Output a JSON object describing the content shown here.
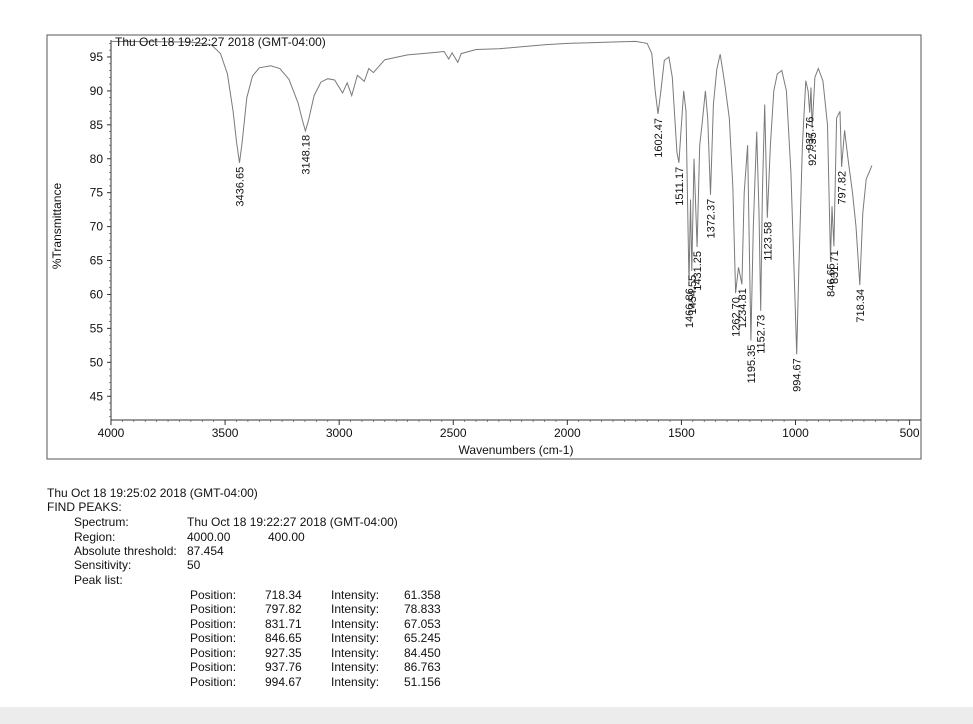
{
  "colors": {
    "spectrum": "#7a7a7a",
    "frame": "#555555",
    "text": "#111111",
    "paper": "#ffffff",
    "margin": "#ececec"
  },
  "chart_data": {
    "type": "line",
    "title": "Thu Oct 18 19:22:27 2018 (GMT-04:00)",
    "xlabel": "Wavenumbers (cm-1)",
    "ylabel": "%Transmittance",
    "xlim": [
      4000,
      450
    ],
    "ylim": [
      41.5,
      97.5
    ],
    "x_reversed": true,
    "grid": false,
    "xticks": [
      4000,
      3500,
      3000,
      2500,
      2000,
      1500,
      1000,
      500
    ],
    "yticks": [
      45,
      50,
      55,
      60,
      65,
      70,
      75,
      80,
      85,
      90,
      95
    ],
    "series": [
      {
        "points": [
          [
            4000,
            97.3
          ],
          [
            3650,
            97.2
          ],
          [
            3560,
            96.8
          ],
          [
            3520,
            95.5
          ],
          [
            3490,
            92.5
          ],
          [
            3465,
            87
          ],
          [
            3450,
            82.5
          ],
          [
            3436.65,
            79.4
          ],
          [
            3425,
            82.5
          ],
          [
            3405,
            89
          ],
          [
            3380,
            92.2
          ],
          [
            3350,
            93.4
          ],
          [
            3300,
            93.7
          ],
          [
            3260,
            93.3
          ],
          [
            3220,
            91.7
          ],
          [
            3180,
            88.2
          ],
          [
            3160,
            85.5
          ],
          [
            3148.18,
            84.1
          ],
          [
            3135,
            85.6
          ],
          [
            3110,
            89.3
          ],
          [
            3080,
            91.3
          ],
          [
            3050,
            91.8
          ],
          [
            3020,
            91.6
          ],
          [
            2985,
            89.7
          ],
          [
            2965,
            91.2
          ],
          [
            2945,
            89.3
          ],
          [
            2920,
            92.3
          ],
          [
            2890,
            91.4
          ],
          [
            2870,
            93.3
          ],
          [
            2850,
            92.7
          ],
          [
            2800,
            94.6
          ],
          [
            2700,
            95.3
          ],
          [
            2600,
            95.6
          ],
          [
            2540,
            95.8
          ],
          [
            2520,
            94.7
          ],
          [
            2505,
            95.6
          ],
          [
            2480,
            94.2
          ],
          [
            2465,
            95.5
          ],
          [
            2400,
            96.1
          ],
          [
            2300,
            96.2
          ],
          [
            2200,
            96.5
          ],
          [
            2100,
            96.8
          ],
          [
            2000,
            97
          ],
          [
            1900,
            97.1
          ],
          [
            1800,
            97.2
          ],
          [
            1700,
            97.3
          ],
          [
            1650,
            97
          ],
          [
            1630,
            95.5
          ],
          [
            1615,
            90
          ],
          [
            1602.47,
            86.6
          ],
          [
            1590,
            90
          ],
          [
            1575,
            94.5
          ],
          [
            1555,
            95
          ],
          [
            1540,
            92
          ],
          [
            1520,
            81
          ],
          [
            1511.17,
            79.4
          ],
          [
            1500,
            85
          ],
          [
            1490,
            90
          ],
          [
            1480,
            87
          ],
          [
            1466.86,
            61.5
          ],
          [
            1460,
            74
          ],
          [
            1454.55,
            63.5
          ],
          [
            1445,
            80
          ],
          [
            1431.25,
            67
          ],
          [
            1420,
            82
          ],
          [
            1410,
            85
          ],
          [
            1395,
            90
          ],
          [
            1385,
            86
          ],
          [
            1372.37,
            74.7
          ],
          [
            1360,
            88
          ],
          [
            1345,
            93.2
          ],
          [
            1330,
            95.4
          ],
          [
            1310,
            91
          ],
          [
            1290,
            86
          ],
          [
            1275,
            76
          ],
          [
            1262.7,
            60.2
          ],
          [
            1250,
            64
          ],
          [
            1234.81,
            61.5
          ],
          [
            1225,
            75
          ],
          [
            1210,
            82
          ],
          [
            1195.35,
            53.2
          ],
          [
            1185,
            70
          ],
          [
            1170,
            84
          ],
          [
            1160,
            72
          ],
          [
            1152.73,
            57.6
          ],
          [
            1145,
            75
          ],
          [
            1135,
            88
          ],
          [
            1123.58,
            71.3
          ],
          [
            1110,
            82
          ],
          [
            1095,
            90
          ],
          [
            1080,
            92.5
          ],
          [
            1060,
            93
          ],
          [
            1040,
            90
          ],
          [
            1020,
            78
          ],
          [
            1005,
            62
          ],
          [
            994.67,
            51.2
          ],
          [
            985,
            64
          ],
          [
            970,
            82
          ],
          [
            955,
            91.5
          ],
          [
            945,
            90
          ],
          [
            937.76,
            86.8
          ],
          [
            932,
            90.5
          ],
          [
            927.35,
            84.5
          ],
          [
            915,
            92
          ],
          [
            900,
            93.3
          ],
          [
            880,
            91.5
          ],
          [
            860,
            85
          ],
          [
            846.65,
            65.2
          ],
          [
            840,
            73
          ],
          [
            831.71,
            67.1
          ],
          [
            820,
            86
          ],
          [
            805,
            87
          ],
          [
            797.82,
            78.8
          ],
          [
            785,
            84.2
          ],
          [
            770,
            80
          ],
          [
            750,
            75
          ],
          [
            735,
            70
          ],
          [
            718.34,
            61.4
          ],
          [
            705,
            72
          ],
          [
            690,
            77
          ],
          [
            675,
            78.2
          ],
          [
            665,
            79
          ]
        ],
        "peak_labels": [
          "3436.65",
          "3148.18",
          "1602.47",
          "1511.17",
          "1466.86",
          "1454.55",
          "1431.25",
          "1372.37",
          "1262.70",
          "1234.81",
          "1195.35",
          "1152.73",
          "1123.58",
          "994.67",
          "937.76",
          "927.35",
          "846.65",
          "831.71",
          "797.82",
          "718.34"
        ]
      }
    ]
  },
  "report": {
    "timestamp": "Thu Oct 18 19:25:02 2018 (GMT-04:00)",
    "heading": "FIND PEAKS:",
    "fields": [
      {
        "label": "Spectrum:",
        "value": "Thu Oct 18 19:22:27 2018 (GMT-04:00)"
      },
      {
        "label": "Region:",
        "value": "4000.00",
        "value2": "400.00"
      },
      {
        "label": "Absolute threshold:",
        "value": "87.454"
      },
      {
        "label": "Sensitivity:",
        "value": "50"
      },
      {
        "label": "Peak list:",
        "value": ""
      }
    ],
    "position_label": "Position:",
    "intensity_label": "Intensity:",
    "peaks": [
      {
        "position": "718.34",
        "intensity": "61.358"
      },
      {
        "position": "797.82",
        "intensity": "78.833"
      },
      {
        "position": "831.71",
        "intensity": "67.053"
      },
      {
        "position": "846.65",
        "intensity": "65.245"
      },
      {
        "position": "927.35",
        "intensity": "84.450"
      },
      {
        "position": "937.76",
        "intensity": "86.763"
      },
      {
        "position": "994.67",
        "intensity": "51.156"
      }
    ]
  }
}
